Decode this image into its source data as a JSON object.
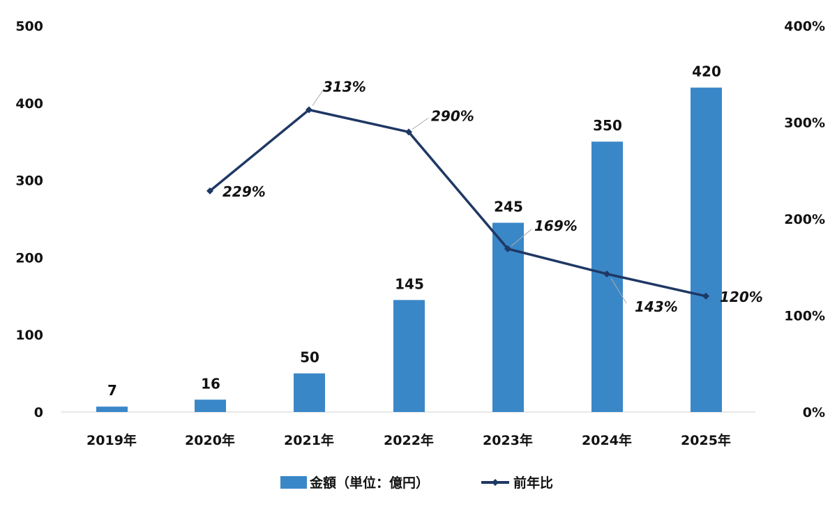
{
  "chart_data": {
    "type": "bar+line",
    "categories": [
      "2019年",
      "2020年",
      "2021年",
      "2022年",
      "2023年",
      "2024年",
      "2025年"
    ],
    "series": [
      {
        "name": "金額（単位：億円）",
        "type": "bar",
        "axis": "left",
        "values": [
          7,
          16,
          50,
          145,
          245,
          350,
          420
        ],
        "labels": [
          "7",
          "16",
          "50",
          "145",
          "245",
          "350",
          "420"
        ],
        "color": "#3a87c8"
      },
      {
        "name": "前年比",
        "type": "line",
        "axis": "right",
        "values": [
          null,
          229,
          313,
          290,
          169,
          143,
          120
        ],
        "labels": [
          "",
          "229%",
          "313%",
          "290%",
          "169%",
          "143%",
          "120%"
        ],
        "color": "#1f3864"
      }
    ],
    "left_axis": {
      "range": [
        0,
        500
      ],
      "ticks": [
        "0",
        "100",
        "200",
        "300",
        "400",
        "500"
      ]
    },
    "right_axis": {
      "range": [
        0,
        400
      ],
      "ticks": [
        "0%",
        "100%",
        "200%",
        "300%",
        "400%"
      ]
    },
    "legend": {
      "position": "bottom",
      "entries": [
        "金額（単位：億円）",
        "前年比"
      ]
    },
    "grid": false
  }
}
